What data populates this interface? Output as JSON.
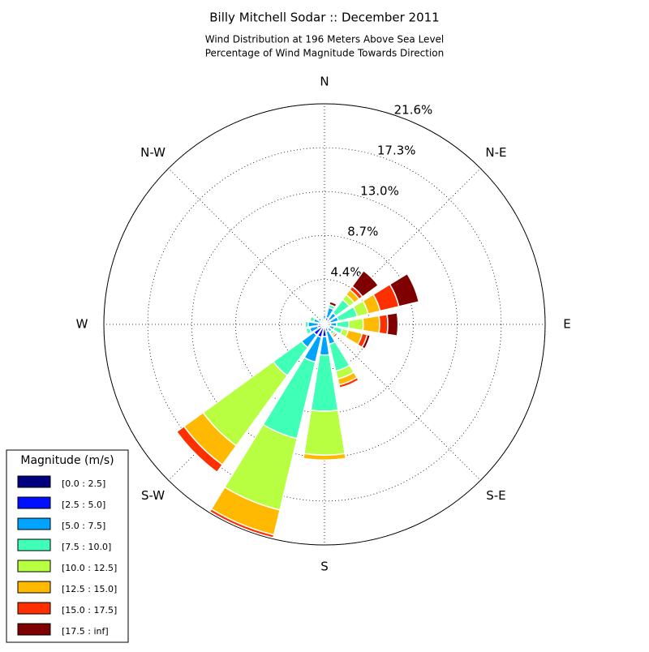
{
  "chart_data": {
    "type": "windrose",
    "title": "Billy Mitchell Sodar :: December 2011",
    "subtitle": [
      "Wind Distribution at 196 Meters Above Sea Level",
      "Percentage of Wind Magnitude Towards Direction"
    ],
    "x": [
      0,
      22.5,
      45,
      67.5,
      90,
      112.5,
      135,
      157.5,
      180,
      202.5,
      225,
      247.5,
      270,
      292.5,
      315,
      337.5
    ],
    "xlim": [
      0,
      360
    ],
    "xticks": [
      {
        "value": 0,
        "label": "N"
      },
      {
        "value": 45,
        "label": "N-E"
      },
      {
        "value": 90,
        "label": "E"
      },
      {
        "value": 135,
        "label": "S-E"
      },
      {
        "value": 180,
        "label": "S"
      },
      {
        "value": 225,
        "label": "S-W"
      },
      {
        "value": 270,
        "label": "W"
      },
      {
        "value": 315,
        "label": "N-W"
      }
    ],
    "ylim": [
      0,
      21.6
    ],
    "yticks": [
      {
        "value": 4.4,
        "label": "4.4%"
      },
      {
        "value": 8.7,
        "label": "8.7%"
      },
      {
        "value": 13.0,
        "label": "13.0%"
      },
      {
        "value": 17.3,
        "label": "17.3%"
      },
      {
        "value": 21.6,
        "label": "21.6%"
      }
    ],
    "grid": true,
    "legend_title": "Magnitude (m/s)",
    "legend_position": "lower left",
    "series": [
      {
        "name": "[0.0 : 2.5]",
        "color": "#00007f",
        "values": [
          0.2,
          0.2,
          0.2,
          0.2,
          0.2,
          0.2,
          0.2,
          0.2,
          0.3,
          0.3,
          0.3,
          0.2,
          0.2,
          0.2,
          0.2,
          0.1
        ]
      },
      {
        "name": "[2.5 : 5.0]",
        "color": "#0010ff",
        "values": [
          0.3,
          0.5,
          0.4,
          0.4,
          0.4,
          0.3,
          0.3,
          0.5,
          0.9,
          1.0,
          1.0,
          0.5,
          0.4,
          0.3,
          0.3,
          0.2
        ]
      },
      {
        "name": "[5.0 : 7.5]",
        "color": "#00a4ff",
        "values": [
          0.4,
          1.0,
          0.8,
          0.8,
          0.6,
          0.5,
          0.4,
          1.3,
          1.8,
          2.5,
          1.5,
          0.8,
          1.0,
          0.6,
          0.3,
          0.3
        ]
      },
      {
        "name": "[7.5 : 10.0]",
        "color": "#40ffb7",
        "values": [
          0,
          0.3,
          1.6,
          1.9,
          1.2,
          0.8,
          0.3,
          2.7,
          5.5,
          7.7,
          3.4,
          0.4,
          0.3,
          0.4,
          0,
          0
        ]
      },
      {
        "name": "[10.0 : 12.5]",
        "color": "#b7ff40",
        "values": [
          0,
          0,
          0.6,
          1.1,
          1.4,
          0.6,
          0,
          0.8,
          4.3,
          7.2,
          8.5,
          0,
          0,
          0,
          0,
          0
        ]
      },
      {
        "name": "[12.5 : 15.0]",
        "color": "#ffb900",
        "values": [
          0,
          0,
          0.6,
          1.2,
          1.6,
          1.4,
          0.2,
          0.6,
          0.5,
          2.5,
          2.3,
          0,
          0,
          0,
          0,
          0
        ]
      },
      {
        "name": "[15.0 : 17.5]",
        "color": "#ff3000",
        "values": [
          0,
          0,
          0.4,
          1.9,
          0.8,
          0.5,
          0.2,
          0.3,
          0,
          0.3,
          0.9,
          0,
          0,
          0,
          0,
          0
        ]
      },
      {
        "name": "[17.5 : inf]",
        "color": "#7f0000",
        "values": [
          0,
          0.3,
          1.9,
          2.0,
          1.0,
          0.3,
          0.1,
          0,
          0,
          0,
          0,
          0,
          0,
          0,
          0,
          0
        ]
      }
    ]
  }
}
